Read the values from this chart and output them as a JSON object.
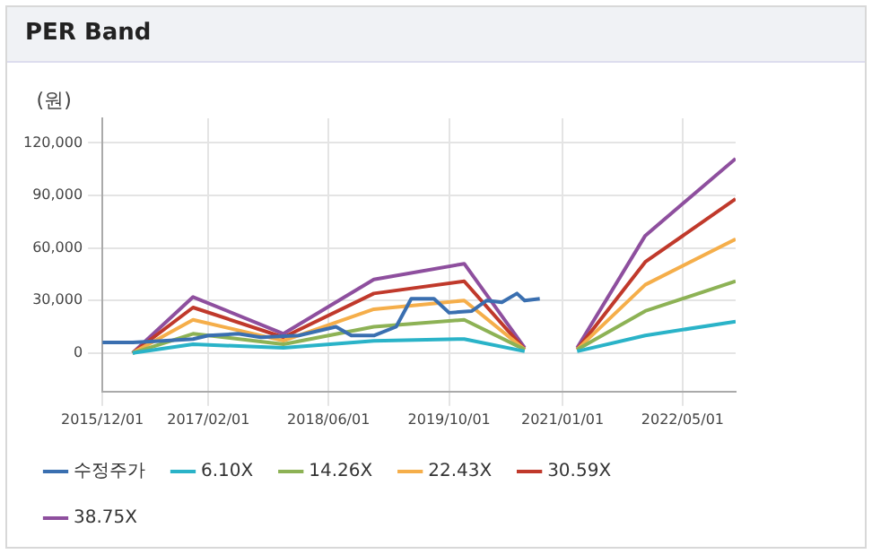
{
  "chart_data": {
    "type": "line",
    "title": "PER Band",
    "ylabel": "(원)",
    "xlim": [
      "2015-12-01",
      "2022-12-01"
    ],
    "xticks": [
      {
        "value": "2015-12-01",
        "label": "2015/12/01"
      },
      {
        "value": "2017-02-01",
        "label": "2017/02/01"
      },
      {
        "value": "2018-06-01",
        "label": "2018/06/01"
      },
      {
        "value": "2019-10-01",
        "label": "2019/10/01"
      },
      {
        "value": "2021-01-01",
        "label": "2021/01/01"
      },
      {
        "value": "2022-05-01",
        "label": "2022/05/01"
      }
    ],
    "ylim": [
      -22000,
      134000
    ],
    "yticks": [
      0,
      {
        "value": 30000,
        "label": "30,000"
      },
      {
        "value": 60000,
        "label": "60,000"
      },
      {
        "value": 90000,
        "label": "90,000"
      },
      {
        "value": 120000,
        "label": "120,000"
      }
    ],
    "grid": true,
    "legend": "bottom",
    "marker": "none",
    "line_style": "solid",
    "series": [
      {
        "name": "수정주가",
        "color": "#3a6fb0",
        "x": [
          "2015-12-01",
          "2016-04-01",
          "2016-08-01",
          "2016-12-01",
          "2017-02-01",
          "2017-06-01",
          "2017-09-01",
          "2018-02-01",
          "2018-07-01",
          "2018-09-01",
          "2018-12-01",
          "2019-03-01",
          "2019-05-01",
          "2019-08-01",
          "2019-10-01",
          "2020-01-01",
          "2020-03-01",
          "2020-05-01",
          "2020-07-01",
          "2020-08-01",
          "2020-10-01"
        ],
        "values": [
          6000,
          6000,
          7000,
          8000,
          10000,
          11000,
          9000,
          10000,
          15000,
          10000,
          10000,
          15000,
          31000,
          31000,
          23000,
          24000,
          30000,
          29000,
          34000,
          30000,
          31000
        ]
      },
      {
        "name": "6.10X",
        "color": "#2ab3c8",
        "x": [
          "2016-04-01",
          "2016-12-01",
          "2017-12-01",
          "2018-12-01",
          "2019-12-01",
          "2020-08-01",
          "2021-01-01",
          "2021-03-01",
          "2021-12-01",
          "2022-12-01"
        ],
        "values": [
          0,
          5000,
          3000,
          7000,
          8000,
          1000,
          null,
          1000,
          10000,
          18000
        ]
      },
      {
        "name": "14.26X",
        "color": "#8db255",
        "x": [
          "2016-04-01",
          "2016-12-01",
          "2017-12-01",
          "2018-12-01",
          "2019-12-01",
          "2020-08-01",
          "2021-01-01",
          "2021-03-01",
          "2021-12-01",
          "2022-12-01"
        ],
        "values": [
          0,
          11000,
          5000,
          15000,
          19000,
          2000,
          null,
          2000,
          24000,
          41000
        ]
      },
      {
        "name": "22.43X",
        "color": "#f5ae4a",
        "x": [
          "2016-04-01",
          "2016-12-01",
          "2017-12-01",
          "2018-12-01",
          "2019-12-01",
          "2020-08-01",
          "2021-01-01",
          "2021-03-01",
          "2021-12-01",
          "2022-12-01"
        ],
        "values": [
          0,
          19000,
          7000,
          25000,
          30000,
          2000,
          null,
          2000,
          39000,
          65000
        ]
      },
      {
        "name": "30.59X",
        "color": "#c0392b",
        "x": [
          "2016-04-01",
          "2016-12-01",
          "2017-12-01",
          "2018-12-01",
          "2019-12-01",
          "2020-08-01",
          "2021-01-01",
          "2021-03-01",
          "2021-12-01",
          "2022-12-01"
        ],
        "values": [
          0,
          26000,
          9000,
          34000,
          41000,
          2000,
          null,
          2000,
          52000,
          88000
        ]
      },
      {
        "name": "38.75X",
        "color": "#8e4f9e",
        "x": [
          "2016-04-01",
          "2016-12-01",
          "2017-12-01",
          "2018-12-01",
          "2019-12-01",
          "2020-08-01",
          "2021-01-01",
          "2021-03-01",
          "2021-12-01",
          "2022-12-01"
        ],
        "values": [
          0,
          32000,
          11000,
          42000,
          51000,
          3000,
          null,
          3000,
          67000,
          111000
        ]
      }
    ]
  }
}
